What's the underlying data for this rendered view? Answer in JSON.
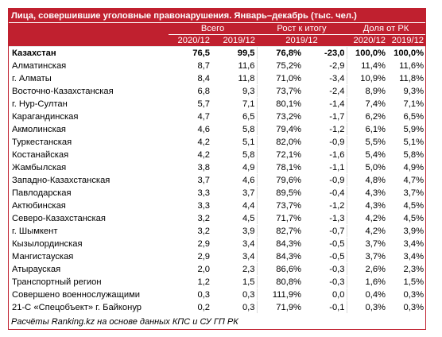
{
  "title": "Лица, совершившие уголовные правонарушения. Январь–декабрь (тыс. чел.)",
  "groups": {
    "total": "Всего",
    "growth": "Рост к итогу",
    "share": "Доля от РК"
  },
  "subheaders": {
    "total_2020": "2020/12",
    "total_2019": "2019/12",
    "growth_2019": "2019/12",
    "share_2020": "2020/12",
    "share_2019": "2019/12"
  },
  "rows": [
    {
      "name": "Казахстан",
      "v2020": "76,5",
      "v2019": "99,5",
      "growth_pct": "76,8%",
      "growth_abs": "-23,0",
      "share2020": "100,0%",
      "share2019": "100,0%"
    },
    {
      "name": "Алматинская",
      "v2020": "8,7",
      "v2019": "11,6",
      "growth_pct": "75,2%",
      "growth_abs": "-2,9",
      "share2020": "11,4%",
      "share2019": "11,6%"
    },
    {
      "name": "г. Алматы",
      "v2020": "8,4",
      "v2019": "11,8",
      "growth_pct": "71,0%",
      "growth_abs": "-3,4",
      "share2020": "10,9%",
      "share2019": "11,8%"
    },
    {
      "name": "Восточно-Казахстанская",
      "v2020": "6,8",
      "v2019": "9,3",
      "growth_pct": "73,7%",
      "growth_abs": "-2,4",
      "share2020": "8,9%",
      "share2019": "9,3%"
    },
    {
      "name": "г. Нур-Султан",
      "v2020": "5,7",
      "v2019": "7,1",
      "growth_pct": "80,1%",
      "growth_abs": "-1,4",
      "share2020": "7,4%",
      "share2019": "7,1%"
    },
    {
      "name": "Карагандинская",
      "v2020": "4,7",
      "v2019": "6,5",
      "growth_pct": "73,2%",
      "growth_abs": "-1,7",
      "share2020": "6,2%",
      "share2019": "6,5%"
    },
    {
      "name": "Акмолинская",
      "v2020": "4,6",
      "v2019": "5,8",
      "growth_pct": "79,4%",
      "growth_abs": "-1,2",
      "share2020": "6,1%",
      "share2019": "5,9%"
    },
    {
      "name": "Туркестанская",
      "v2020": "4,2",
      "v2019": "5,1",
      "growth_pct": "82,0%",
      "growth_abs": "-0,9",
      "share2020": "5,5%",
      "share2019": "5,1%"
    },
    {
      "name": "Костанайская",
      "v2020": "4,2",
      "v2019": "5,8",
      "growth_pct": "72,1%",
      "growth_abs": "-1,6",
      "share2020": "5,4%",
      "share2019": "5,8%"
    },
    {
      "name": "Жамбылская",
      "v2020": "3,8",
      "v2019": "4,9",
      "growth_pct": "78,1%",
      "growth_abs": "-1,1",
      "share2020": "5,0%",
      "share2019": "4,9%"
    },
    {
      "name": "Западно-Казахстанская",
      "v2020": "3,7",
      "v2019": "4,6",
      "growth_pct": "79,6%",
      "growth_abs": "-0,9",
      "share2020": "4,8%",
      "share2019": "4,7%"
    },
    {
      "name": "Павлодарская",
      "v2020": "3,3",
      "v2019": "3,7",
      "growth_pct": "89,5%",
      "growth_abs": "-0,4",
      "share2020": "4,3%",
      "share2019": "3,7%"
    },
    {
      "name": "Актюбинская",
      "v2020": "3,3",
      "v2019": "4,4",
      "growth_pct": "73,7%",
      "growth_abs": "-1,2",
      "share2020": "4,3%",
      "share2019": "4,5%"
    },
    {
      "name": "Северо-Казахстанская",
      "v2020": "3,2",
      "v2019": "4,5",
      "growth_pct": "71,7%",
      "growth_abs": "-1,3",
      "share2020": "4,2%",
      "share2019": "4,5%"
    },
    {
      "name": "г. Шымкент",
      "v2020": "3,2",
      "v2019": "3,9",
      "growth_pct": "82,7%",
      "growth_abs": "-0,7",
      "share2020": "4,2%",
      "share2019": "3,9%"
    },
    {
      "name": "Кызылординская",
      "v2020": "2,9",
      "v2019": "3,4",
      "growth_pct": "84,3%",
      "growth_abs": "-0,5",
      "share2020": "3,7%",
      "share2019": "3,4%"
    },
    {
      "name": "Мангистауская",
      "v2020": "2,9",
      "v2019": "3,4",
      "growth_pct": "84,3%",
      "growth_abs": "-0,5",
      "share2020": "3,7%",
      "share2019": "3,4%"
    },
    {
      "name": "Атырауская",
      "v2020": "2,0",
      "v2019": "2,3",
      "growth_pct": "86,6%",
      "growth_abs": "-0,3",
      "share2020": "2,6%",
      "share2019": "2,3%"
    },
    {
      "name": "Транспортный регион",
      "v2020": "1,2",
      "v2019": "1,5",
      "growth_pct": "80,8%",
      "growth_abs": "-0,3",
      "share2020": "1,6%",
      "share2019": "1,5%"
    },
    {
      "name": "Совершено военнослужащими",
      "v2020": "0,3",
      "v2019": "0,3",
      "growth_pct": "111,9%",
      "growth_abs": "0,0",
      "share2020": "0,4%",
      "share2019": "0,3%"
    },
    {
      "name": "21-С «Спецобъект» г. Байконур",
      "v2020": "0,2",
      "v2019": "0,3",
      "growth_pct": "71,9%",
      "growth_abs": "-0,1",
      "share2020": "0,3%",
      "share2019": "0,3%"
    }
  ],
  "footer": "Расчёты Ranking.kz на основе данных КПС и СУ ГП РК",
  "colors": {
    "header_bg": "#c0202f",
    "header_text": "#ffffff"
  }
}
